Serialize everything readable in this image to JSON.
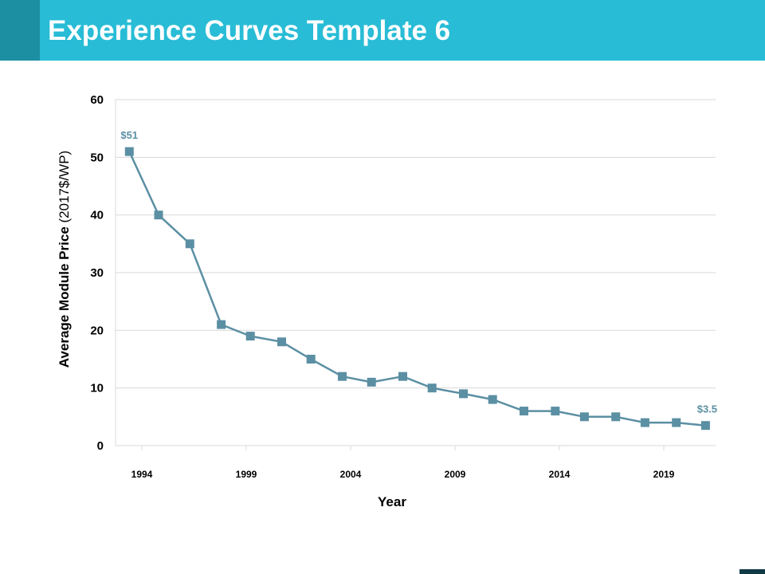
{
  "header": {
    "title": "Experience Curves Template 6"
  },
  "colors": {
    "header_bg": "#28bcd6",
    "header_accent": "#1c8fa3",
    "series": "#5b8fa3",
    "grid": "#d9d9d9",
    "axis_text": "#000000",
    "corner_mark": "#103a44"
  },
  "chart_data": {
    "type": "line",
    "title": "",
    "xlabel": "Year",
    "ylabel_bold": "Average Module  Price",
    "ylabel_normal": " (2017$/WP)",
    "ylim": [
      0,
      60
    ],
    "yticks": [
      0,
      10,
      20,
      30,
      40,
      50,
      60
    ],
    "xticks": [
      "1994",
      "1999",
      "2004",
      "2009",
      "2014",
      "2019"
    ],
    "grid": true,
    "legend": "none",
    "series": [
      {
        "name": "Average Module Price",
        "x": [
          1993.4,
          1994.8,
          1996.3,
          1997.8,
          1999.2,
          2000.7,
          2002.1,
          2003.6,
          2005.0,
          2006.5,
          2007.9,
          2009.4,
          2010.8,
          2012.3,
          2013.8,
          2015.2,
          2016.7,
          2018.1,
          2019.6,
          2021.0
        ],
        "values": [
          51,
          40,
          35,
          21,
          19,
          18,
          15,
          12,
          11,
          12,
          10,
          9,
          8,
          6,
          6,
          5,
          5,
          4,
          4,
          3.5
        ]
      }
    ],
    "annotations": [
      {
        "text": "$51",
        "point_index": 0
      },
      {
        "text": "$3.5",
        "point_index": 19
      }
    ]
  }
}
